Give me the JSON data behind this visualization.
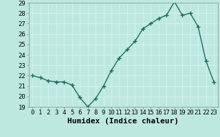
{
  "x": [
    0,
    1,
    2,
    3,
    4,
    5,
    6,
    7,
    8,
    9,
    10,
    11,
    12,
    13,
    14,
    15,
    16,
    17,
    18,
    19,
    20,
    21,
    22,
    23
  ],
  "y": [
    22.0,
    21.8,
    21.5,
    21.4,
    21.4,
    21.1,
    19.9,
    19.0,
    19.8,
    21.0,
    22.5,
    23.7,
    24.5,
    25.3,
    26.5,
    27.0,
    27.5,
    27.8,
    29.1,
    27.8,
    28.0,
    26.7,
    23.4,
    21.4
  ],
  "xlabel": "Humidex (Indice chaleur)",
  "ylim": [
    19,
    29
  ],
  "xlim": [
    -0.5,
    23.5
  ],
  "yticks": [
    19,
    20,
    21,
    22,
    23,
    24,
    25,
    26,
    27,
    28,
    29
  ],
  "xticks": [
    0,
    1,
    2,
    3,
    4,
    5,
    6,
    7,
    8,
    9,
    10,
    11,
    12,
    13,
    14,
    15,
    16,
    17,
    18,
    19,
    20,
    21,
    22,
    23
  ],
  "line_color": "#1a6b5a",
  "marker_color": "#1a6b5a",
  "bg_color": "#bde8e0",
  "grid_color": "#d4f0ea",
  "tick_label_fontsize": 6.5,
  "xlabel_fontsize": 8,
  "line_width": 1.0,
  "marker_size": 4
}
